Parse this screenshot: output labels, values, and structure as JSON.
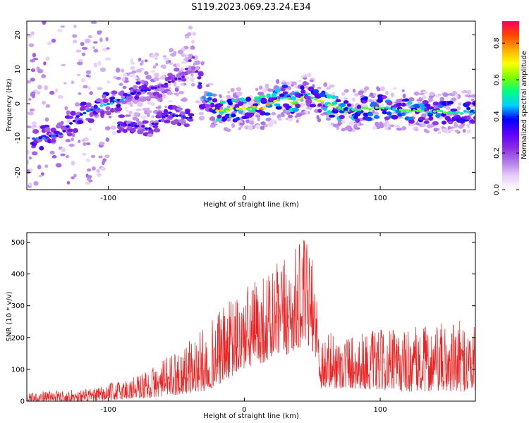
{
  "title": "S119.2023.069.23.24.E34",
  "chart_data": [
    {
      "type": "heatmap",
      "xlabel": "Height of straight line (km)",
      "ylabel": "Frequency (Hz)",
      "xlim": [
        -160,
        170
      ],
      "ylim": [
        -25,
        24
      ],
      "xticks": [
        -100,
        0,
        100
      ],
      "yticks": [
        -20,
        -10,
        0,
        10,
        20
      ],
      "colorbar": {
        "label": "Normalized spectral amplitude",
        "range": [
          0,
          0.92
        ],
        "ticks": [
          "0.0",
          "0.2",
          "0.4",
          "0.6",
          "0.8"
        ],
        "tick_values": [
          0.0,
          0.2,
          0.4,
          0.6,
          0.8
        ],
        "colormap": [
          "#ffffff",
          "#e6ccf7",
          "#b07ae8",
          "#8a2be2",
          "#5a00ff",
          "#0000ff",
          "#00d0ff",
          "#00ff7f",
          "#7fff00",
          "#ffff00",
          "#ffaa00",
          "#ff4400",
          "#ff0060"
        ]
      },
      "ridge": [
        {
          "x": -150,
          "f": -10,
          "a": 0.45
        },
        {
          "x": -135,
          "f": -9,
          "a": 0.4
        },
        {
          "x": -120,
          "f": -3,
          "a": 0.45
        },
        {
          "x": -100,
          "f": 0,
          "a": 0.5
        },
        {
          "x": -80,
          "f": 3,
          "a": 0.4
        },
        {
          "x": -60,
          "f": 5,
          "a": 0.35
        },
        {
          "x": -45,
          "f": 8,
          "a": 0.3
        },
        {
          "x": -38,
          "f": 14,
          "a": 0.25
        },
        {
          "x": -30,
          "f": 2,
          "a": 0.45
        },
        {
          "x": -20,
          "f": -2,
          "a": 0.75
        },
        {
          "x": 0,
          "f": -1.5,
          "a": 0.7
        },
        {
          "x": 15,
          "f": -1,
          "a": 0.8
        },
        {
          "x": 30,
          "f": 2,
          "a": 0.55
        },
        {
          "x": 37,
          "f": 0,
          "a": 0.85
        },
        {
          "x": 45,
          "f": 3,
          "a": 0.5
        },
        {
          "x": 60,
          "f": 0,
          "a": 0.7
        },
        {
          "x": 75,
          "f": -2,
          "a": 0.65
        },
        {
          "x": 100,
          "f": -1,
          "a": 0.6
        },
        {
          "x": 120,
          "f": -2,
          "a": 0.65
        },
        {
          "x": 140,
          "f": -2.5,
          "a": 0.6
        },
        {
          "x": 165,
          "f": -2.5,
          "a": 0.55
        }
      ],
      "lower_branch": [
        {
          "x": -90,
          "f": -6,
          "a": 0.4
        },
        {
          "x": -70,
          "f": -7,
          "a": 0.35
        },
        {
          "x": -55,
          "f": -3,
          "a": 0.4
        },
        {
          "x": -40,
          "f": -4,
          "a": 0.4
        }
      ]
    },
    {
      "type": "line",
      "xlabel": "Height of straight line (km)",
      "ylabel": "SNR (10 * v/v)",
      "xlim": [
        -160,
        170
      ],
      "ylim": [
        0,
        530
      ],
      "xticks": [
        -100,
        0,
        100
      ],
      "yticks": [
        0,
        100,
        200,
        300,
        400,
        500
      ],
      "color": "#ee2222",
      "envelope": [
        {
          "x": -160,
          "lo": 0,
          "hi": 30
        },
        {
          "x": -130,
          "lo": 0,
          "hi": 35
        },
        {
          "x": -110,
          "lo": 0,
          "hi": 40
        },
        {
          "x": -90,
          "lo": 5,
          "hi": 70
        },
        {
          "x": -70,
          "lo": 10,
          "hi": 100
        },
        {
          "x": -50,
          "lo": 20,
          "hi": 160
        },
        {
          "x": -30,
          "lo": 30,
          "hi": 230
        },
        {
          "x": -15,
          "lo": 60,
          "hi": 300
        },
        {
          "x": 0,
          "lo": 100,
          "hi": 360
        },
        {
          "x": 20,
          "lo": 130,
          "hi": 420
        },
        {
          "x": 35,
          "lo": 150,
          "hi": 470
        },
        {
          "x": 45,
          "lo": 180,
          "hi": 520
        },
        {
          "x": 52,
          "lo": 150,
          "hi": 420
        },
        {
          "x": 56,
          "lo": 40,
          "hi": 220
        },
        {
          "x": 80,
          "lo": 40,
          "hi": 220
        },
        {
          "x": 120,
          "lo": 30,
          "hi": 230
        },
        {
          "x": 170,
          "lo": 30,
          "hi": 260
        }
      ]
    }
  ]
}
